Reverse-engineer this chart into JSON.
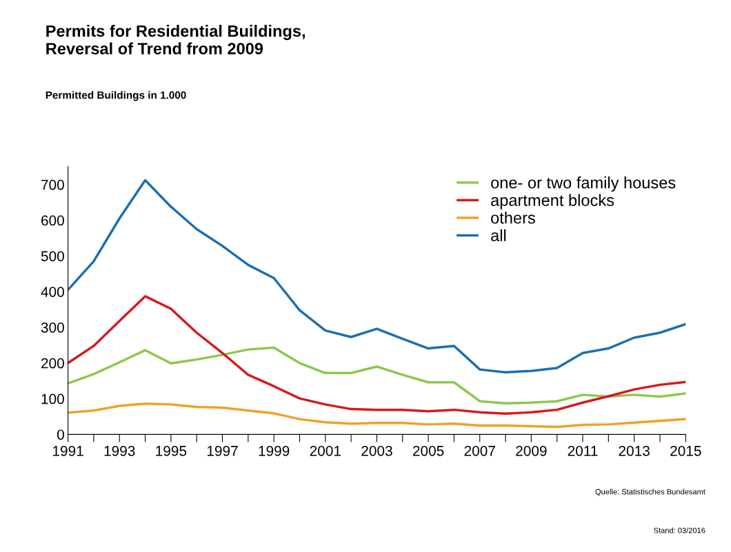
{
  "chart_data": {
    "type": "line",
    "title": "Permits for Residential Buildings,\nReversal of Trend from 2009",
    "subtitle": "Permitted Buildings in 1.000",
    "x": [
      1991,
      1992,
      1993,
      1994,
      1995,
      1996,
      1997,
      1998,
      1999,
      2000,
      2001,
      2002,
      2003,
      2004,
      2005,
      2006,
      2007,
      2008,
      2009,
      2010,
      2011,
      2012,
      2013,
      2014,
      2015
    ],
    "series": [
      {
        "name": "one- or two family houses",
        "color": "#8cc84b",
        "values": [
          143,
          169,
          202,
          236,
          199,
          210,
          223,
          238,
          243,
          200,
          172,
          172,
          190,
          167,
          146,
          146,
          93,
          87,
          89,
          93,
          111,
          106,
          111,
          106,
          115
        ]
      },
      {
        "name": "apartment blocks",
        "color": "#d7191c",
        "values": [
          200,
          248,
          318,
          387,
          352,
          285,
          228,
          167,
          135,
          101,
          84,
          71,
          69,
          69,
          65,
          69,
          62,
          58,
          62,
          69,
          89,
          107,
          126,
          139,
          147
        ]
      },
      {
        "name": "others",
        "color": "#f0a02a",
        "values": [
          61,
          67,
          80,
          86,
          84,
          77,
          75,
          67,
          59,
          43,
          34,
          30,
          32,
          32,
          28,
          30,
          25,
          25,
          23,
          21,
          27,
          28,
          33,
          38,
          43
        ]
      },
      {
        "name": "all",
        "color": "#1b6fb0",
        "values": [
          405,
          485,
          605,
          712,
          638,
          575,
          528,
          475,
          438,
          348,
          291,
          273,
          296,
          268,
          241,
          248,
          182,
          174,
          178,
          186,
          228,
          241,
          271,
          285,
          309
        ]
      }
    ],
    "xlim": [
      1991,
      2015
    ],
    "xticks": [
      1991,
      {
        "value": 1992,
        "label": null
      },
      1993,
      {
        "value": 1994,
        "label": null
      },
      1995,
      {
        "value": 1996,
        "label": null
      },
      1997,
      {
        "value": 1998,
        "label": null
      },
      1999,
      {
        "value": 2000,
        "label": null
      },
      2001,
      {
        "value": 2002,
        "label": null
      },
      2003,
      {
        "value": 2004,
        "label": null
      },
      2005,
      {
        "value": 2006,
        "label": null
      },
      2007,
      {
        "value": 2008,
        "label": null
      },
      2009,
      {
        "value": 2010,
        "label": null
      },
      2011,
      {
        "value": 2012,
        "label": null
      },
      2013,
      {
        "value": 2014,
        "label": null
      },
      2015
    ],
    "ylim": [
      0,
      750
    ],
    "yticks": [
      0,
      100,
      200,
      300,
      400,
      500,
      600,
      700
    ],
    "grid": false,
    "legend": "top right",
    "marker": "none",
    "line_style": "solid",
    "annotations": [
      "Quelle: Statistisches Bundesamt",
      "Stand: 03/2016"
    ]
  }
}
